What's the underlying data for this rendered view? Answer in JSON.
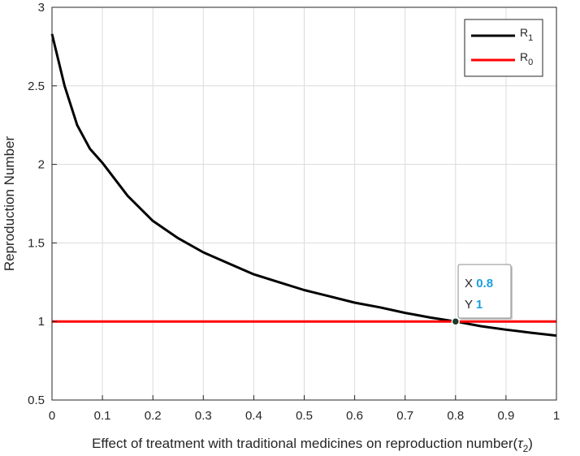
{
  "chart_data": {
    "type": "line",
    "xlabel": "Effect of treatment with traditional medicines on reproduction number",
    "xlabel_symbol": "τ",
    "xlabel_subscript": "2",
    "ylabel": "Reproduction Number",
    "xlim": [
      0,
      1
    ],
    "ylim": [
      0.5,
      3
    ],
    "xticks": [
      "0",
      "0.1",
      "0.2",
      "0.3",
      "0.4",
      "0.5",
      "0.6",
      "0.7",
      "0.8",
      "0.9",
      "1"
    ],
    "yticks": [
      "0.5",
      "1",
      "1.5",
      "2",
      "2.5",
      "3"
    ],
    "grid": true,
    "legend_position": "top-right",
    "series": [
      {
        "name": "R1",
        "label_base": "R",
        "label_sub": "1",
        "color": "#000000",
        "x": [
          0,
          0.025,
          0.05,
          0.075,
          0.1,
          0.15,
          0.2,
          0.25,
          0.3,
          0.35,
          0.4,
          0.45,
          0.5,
          0.55,
          0.6,
          0.65,
          0.7,
          0.75,
          0.8,
          0.85,
          0.9,
          0.95,
          1.0
        ],
        "y": [
          2.83,
          2.5,
          2.25,
          2.1,
          2.01,
          1.8,
          1.64,
          1.53,
          1.44,
          1.37,
          1.3,
          1.25,
          1.2,
          1.16,
          1.12,
          1.09,
          1.055,
          1.025,
          1.0,
          0.97,
          0.948,
          0.928,
          0.91
        ]
      },
      {
        "name": "R0",
        "label_base": "R",
        "label_sub": "0",
        "color": "#ff0000",
        "x": [
          0,
          1
        ],
        "y": [
          1,
          1
        ]
      }
    ],
    "datatip": {
      "x": 0.8,
      "y": 1,
      "x_label": "X",
      "y_label": "Y",
      "x_text": "0.8",
      "y_text": "1",
      "value_color": "#1a9fe0"
    }
  }
}
